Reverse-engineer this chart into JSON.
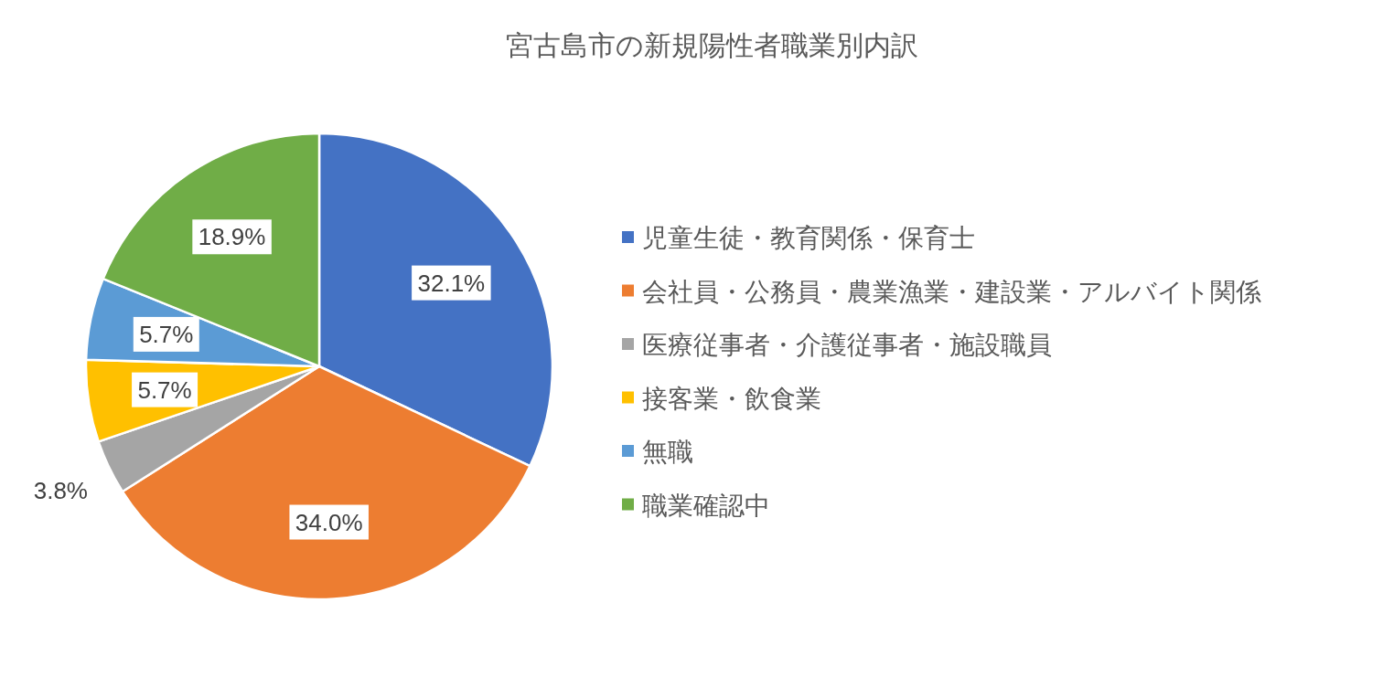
{
  "chart_data": {
    "type": "pie",
    "title": "宮古島市の新規陽性者職業別内訳",
    "categories": [
      "児童生徒・教育関係・保育士",
      "会社員・公務員・農業漁業・建設業・アルバイト関係",
      "医療従事者・介護従事者・施設職員",
      "接客業・飲食業",
      "無職",
      "職業確認中"
    ],
    "values": [
      32.1,
      34.0,
      3.8,
      5.7,
      5.7,
      18.9
    ],
    "colors": [
      "#4472c4",
      "#ed7d31",
      "#a5a5a5",
      "#ffc000",
      "#5b9bd5",
      "#70ad47"
    ],
    "value_labels": [
      "32.1%",
      "34.0%",
      "3.8%",
      "5.7%",
      "5.7%",
      "18.9%"
    ],
    "legend": "right"
  }
}
